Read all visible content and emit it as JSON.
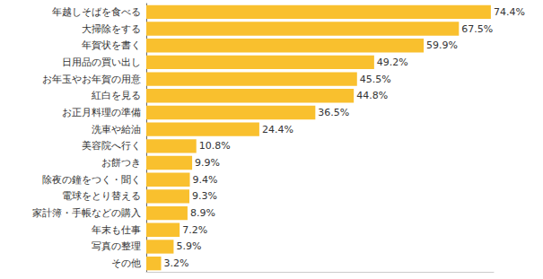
{
  "chart_data": {
    "type": "bar",
    "orientation": "horizontal",
    "categories": [
      "年越しそばを食べる",
      "大掃除をする",
      "年賀状を書く",
      "日用品の買い出し",
      "お年玉やお年賀の用意",
      "紅白を見る",
      "お正月料理の準備",
      "洗車や給油",
      "美容院へ行く",
      "お餅つき",
      "除夜の鐘をつく・聞く",
      "電球をとり替える",
      "家計簿・手帳などの購入",
      "年末も仕事",
      "写真の整理",
      "その他"
    ],
    "values": [
      74.4,
      67.5,
      59.9,
      49.2,
      45.5,
      44.8,
      36.5,
      24.4,
      10.8,
      9.9,
      9.4,
      9.3,
      8.9,
      7.2,
      5.9,
      3.2
    ],
    "value_labels": [
      "74.4%",
      "67.5%",
      "59.9%",
      "49.2%",
      "45.5%",
      "44.8%",
      "36.5%",
      "24.4%",
      "10.8%",
      "9.9%",
      "9.4%",
      "9.3%",
      "8.9%",
      "7.2%",
      "5.9%",
      "3.2%"
    ],
    "color": "#f9c02e",
    "xlim": [
      0,
      75
    ],
    "data_labels": true,
    "tick_labels": "y",
    "grid": false
  }
}
